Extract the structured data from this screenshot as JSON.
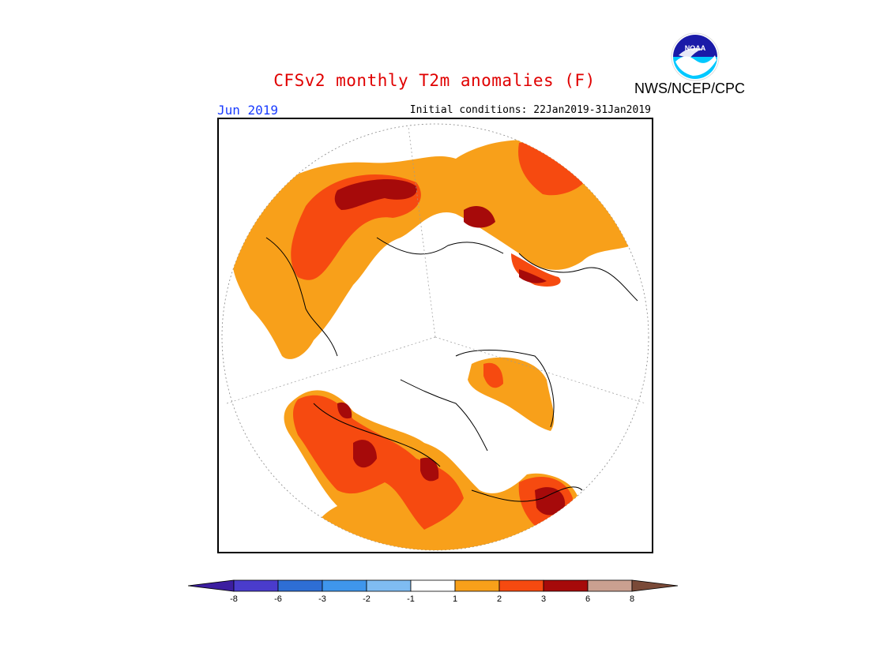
{
  "title": "CFSv2 monthly T2m anomalies (F)",
  "agency": "NWS/NCEP/CPC",
  "period_label": "Jun 2019",
  "initial_conditions": "Initial conditions: 22Jan2019-31Jan2019",
  "logo_text": "NOAA",
  "colorbar": {
    "ticks": [
      "-8",
      "-6",
      "-3",
      "-2",
      "-1",
      "1",
      "2",
      "3",
      "6",
      "8"
    ],
    "colors": [
      "#3c1ea0",
      "#4a3ccc",
      "#2e6ed4",
      "#3f96ec",
      "#7fbcf2",
      "#ffffff",
      "#f8a01a",
      "#f64a10",
      "#a60a0a",
      "#caa090",
      "#7a4a38"
    ]
  },
  "colors": {
    "title": "#e00000",
    "period": "#1a3cff",
    "anomaly_1_2": "#f8a01a",
    "anomaly_2_3": "#f64a10",
    "anomaly_3_6": "#a60a0a"
  }
}
